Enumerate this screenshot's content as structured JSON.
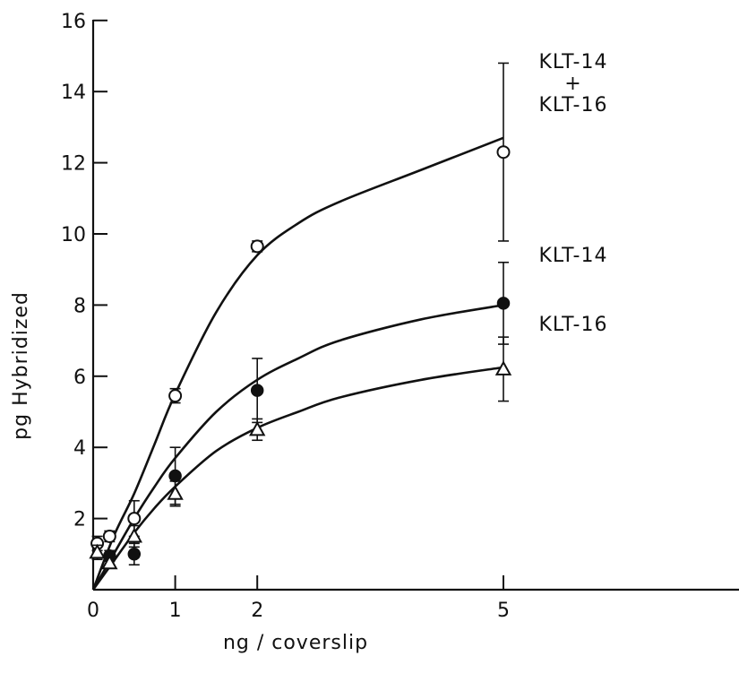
{
  "chart_data": {
    "type": "line",
    "title": "",
    "xlabel": "ng / coverslip",
    "ylabel": "pg  Hybridized",
    "xlim": [
      0,
      8.5
    ],
    "ylim": [
      0,
      16
    ],
    "x_ticks": [
      0,
      1,
      2,
      5
    ],
    "x_tick_labels": [
      "0",
      "1",
      "2",
      "5"
    ],
    "y_ticks": [
      2,
      4,
      6,
      8,
      10,
      12,
      14,
      16
    ],
    "y_tick_labels": [
      "2",
      "4",
      "6",
      "8",
      "10",
      "12",
      "14",
      "16"
    ],
    "grid": false,
    "series": [
      {
        "name": "KLT-14 + KLT-16",
        "label_lines": [
          "KLT-14",
          "+",
          "KLT-16"
        ],
        "marker": "open-circle",
        "points": [
          {
            "x": 0.05,
            "y": 1.3,
            "err": 0.2
          },
          {
            "x": 0.2,
            "y": 1.5,
            "err": 0.15
          },
          {
            "x": 0.5,
            "y": 2.0,
            "err": 0.5
          },
          {
            "x": 1,
            "y": 5.45,
            "err": 0.2
          },
          {
            "x": 2,
            "y": 9.65,
            "err": 0.15
          },
          {
            "x": 5,
            "y": 12.3,
            "err": 2.5
          }
        ],
        "curve": [
          {
            "x": 0,
            "y": 0
          },
          {
            "x": 0.25,
            "y": 1.5
          },
          {
            "x": 0.5,
            "y": 2.7
          },
          {
            "x": 0.75,
            "y": 4.1
          },
          {
            "x": 1,
            "y": 5.5
          },
          {
            "x": 1.5,
            "y": 7.8
          },
          {
            "x": 2,
            "y": 9.4
          },
          {
            "x": 2.5,
            "y": 10.3
          },
          {
            "x": 3,
            "y": 10.9
          },
          {
            "x": 4,
            "y": 11.8
          },
          {
            "x": 5,
            "y": 12.7
          }
        ]
      },
      {
        "name": "KLT-14",
        "label_lines": [
          "KLT-14"
        ],
        "marker": "filled-circle",
        "points": [
          {
            "x": 0.2,
            "y": 0.95,
            "err": 0.15
          },
          {
            "x": 0.5,
            "y": 1.0,
            "err": 0.3
          },
          {
            "x": 1,
            "y": 3.2,
            "err": 0.8
          },
          {
            "x": 2,
            "y": 5.6,
            "err": 0.9
          },
          {
            "x": 5,
            "y": 8.05,
            "err": 1.15
          }
        ],
        "curve": [
          {
            "x": 0,
            "y": 0
          },
          {
            "x": 0.25,
            "y": 1.0
          },
          {
            "x": 0.5,
            "y": 2.0
          },
          {
            "x": 0.75,
            "y": 2.9
          },
          {
            "x": 1,
            "y": 3.7
          },
          {
            "x": 1.5,
            "y": 5.0
          },
          {
            "x": 2,
            "y": 5.9
          },
          {
            "x": 2.5,
            "y": 6.5
          },
          {
            "x": 3,
            "y": 7.0
          },
          {
            "x": 4,
            "y": 7.6
          },
          {
            "x": 5,
            "y": 8.0
          }
        ]
      },
      {
        "name": "KLT-16",
        "label_lines": [
          "KLT-16"
        ],
        "marker": "open-triangle",
        "points": [
          {
            "x": 0.05,
            "y": 1.05,
            "err": 0.2
          },
          {
            "x": 0.2,
            "y": 0.75,
            "err": 0.15
          },
          {
            "x": 0.5,
            "y": 1.5,
            "err": 0.3
          },
          {
            "x": 1,
            "y": 2.7,
            "err": 0.35
          },
          {
            "x": 2,
            "y": 4.5,
            "err": 0.3
          },
          {
            "x": 5,
            "y": 6.2,
            "err": 0.9
          }
        ],
        "curve": [
          {
            "x": 0,
            "y": 0
          },
          {
            "x": 0.25,
            "y": 0.8
          },
          {
            "x": 0.5,
            "y": 1.6
          },
          {
            "x": 0.75,
            "y": 2.3
          },
          {
            "x": 1,
            "y": 2.9
          },
          {
            "x": 1.5,
            "y": 3.9
          },
          {
            "x": 2,
            "y": 4.55
          },
          {
            "x": 2.5,
            "y": 5.0
          },
          {
            "x": 3,
            "y": 5.4
          },
          {
            "x": 4,
            "y": 5.9
          },
          {
            "x": 5,
            "y": 6.25
          }
        ]
      }
    ]
  }
}
